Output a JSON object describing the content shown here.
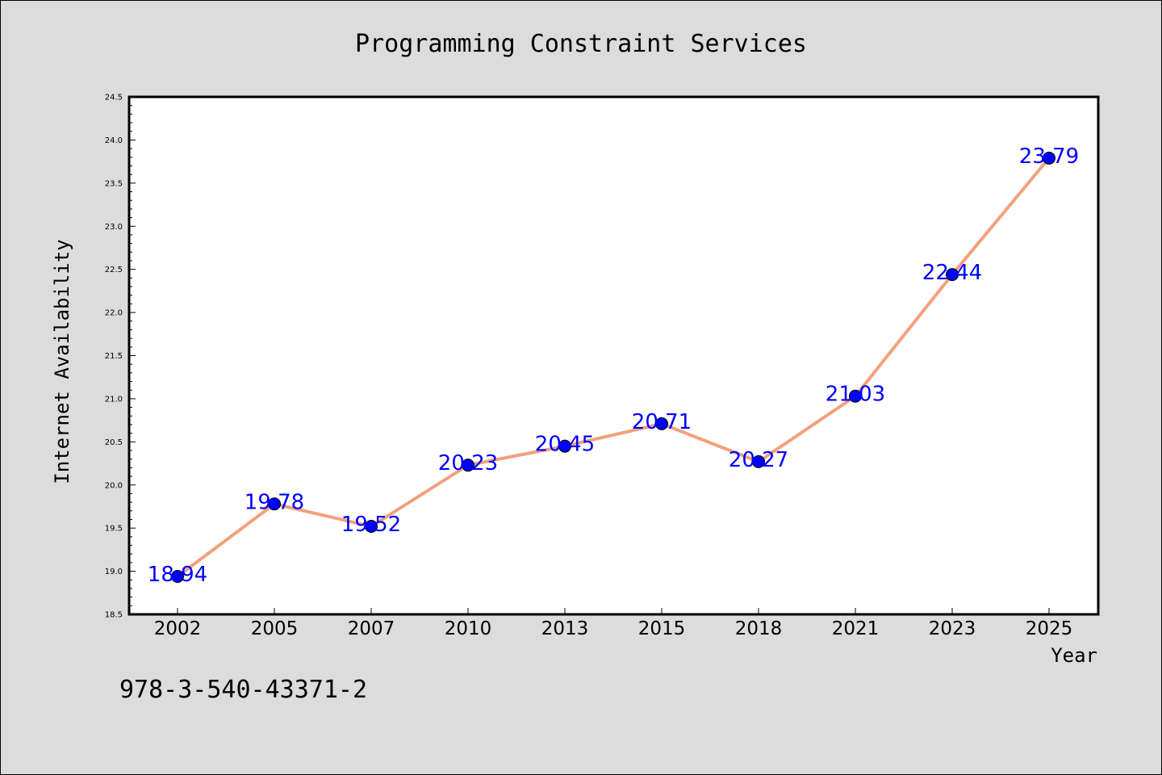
{
  "chart_data": {
    "type": "line",
    "title": "Programming Constraint Services",
    "xlabel": "Year",
    "ylabel": "Internet Availability",
    "categories": [
      "2002",
      "2005",
      "2007",
      "2010",
      "2013",
      "2015",
      "2018",
      "2021",
      "2023",
      "2025"
    ],
    "series": [
      {
        "values": [
          18.94,
          19.78,
          19.52,
          20.23,
          20.45,
          20.71,
          20.27,
          21.03,
          22.44,
          23.79
        ]
      }
    ],
    "data_labels": [
      "18.94",
      "19.78",
      "19.52",
      "20.23",
      "20.45",
      "20.71",
      "20.27",
      "21.03",
      "22.44",
      "23.79"
    ],
    "ylim": [
      18.5,
      24.5
    ],
    "yticks": [
      "18.5",
      "19.0",
      "19.5",
      "20.0",
      "20.5",
      "21.0",
      "21.5",
      "22.0",
      "22.5",
      "23.0",
      "23.5",
      "24.0",
      "24.5"
    ],
    "grid": false,
    "legend": "none",
    "line_color": "#f4a07e",
    "marker_color": "#0000ff",
    "label_color": "#0000ff",
    "plot_background": "#ffffff",
    "page_background": "#dcdcdc"
  },
  "annotation": "978-3-540-43371-2"
}
